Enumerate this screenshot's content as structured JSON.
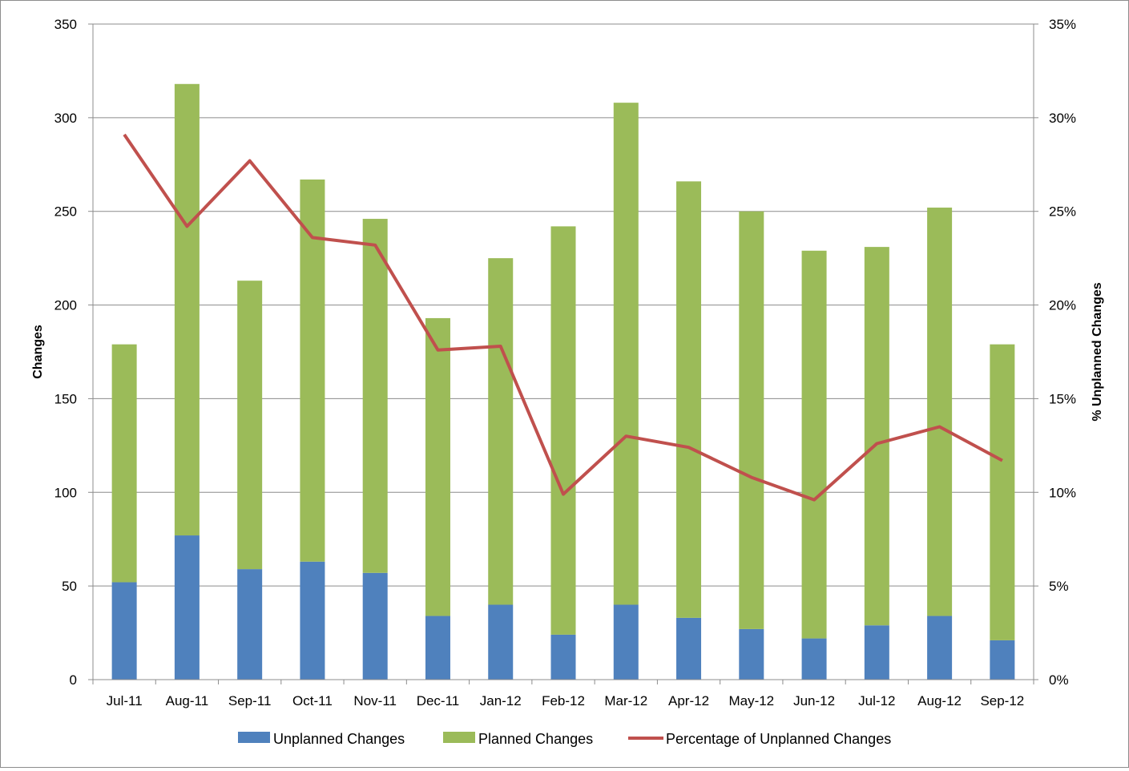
{
  "chart_data": {
    "type": "bar",
    "stacked": true,
    "categories": [
      "Jul-11",
      "Aug-11",
      "Sep-11",
      "Oct-11",
      "Nov-11",
      "Dec-11",
      "Jan-12",
      "Feb-12",
      "Mar-12",
      "Apr-12",
      "May-12",
      "Jun-12",
      "Jul-12",
      "Aug-12",
      "Sep-12"
    ],
    "series": [
      {
        "name": "Unplanned Changes",
        "type": "bar",
        "axis": "left",
        "color": "#4f81bd",
        "values": [
          52,
          77,
          59,
          63,
          57,
          34,
          40,
          24,
          40,
          33,
          27,
          22,
          29,
          34,
          21
        ]
      },
      {
        "name": "Planned Changes",
        "type": "bar",
        "axis": "left",
        "color": "#9bbb59",
        "values": [
          127,
          241,
          154,
          204,
          189,
          159,
          185,
          218,
          268,
          233,
          223,
          207,
          202,
          218,
          158
        ]
      },
      {
        "name": "Percentage of Unplanned Changes",
        "type": "line",
        "axis": "right",
        "color": "#c0504d",
        "values": [
          29.1,
          24.2,
          27.7,
          23.6,
          23.2,
          17.6,
          17.8,
          9.9,
          13.0,
          12.4,
          10.8,
          9.6,
          12.6,
          13.5,
          11.7
        ]
      }
    ],
    "ylabel": "Changes",
    "ylim": [
      0,
      350
    ],
    "yticks": [
      "0",
      "50",
      "100",
      "150",
      "200",
      "250",
      "300",
      "350"
    ],
    "y2label": "% Unplanned Changes",
    "y2lim": [
      0,
      35
    ],
    "y2ticks": [
      "0%",
      "5%",
      "10%",
      "15%",
      "20%",
      "25%",
      "30%",
      "35%"
    ],
    "grid": true,
    "legend": "bottom"
  }
}
